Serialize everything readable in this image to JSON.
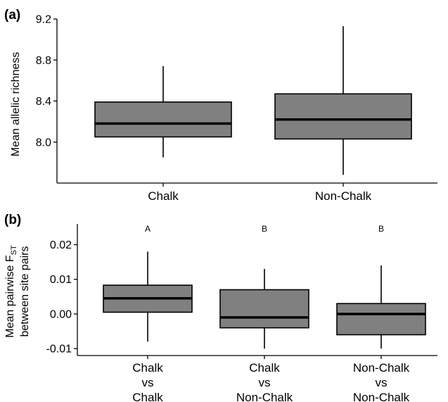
{
  "chart_data": [
    {
      "panel": "(a)",
      "type": "box",
      "ylabel": "Mean allelic richness",
      "ylim": [
        7.6,
        9.2
      ],
      "yticks": [
        "8.0",
        "8.4",
        "8.8",
        "9.2"
      ],
      "box_color": "#808080",
      "categories": [
        {
          "label": [
            "Chalk"
          ],
          "min": 7.85,
          "q1": 8.05,
          "median": 8.18,
          "q3": 8.39,
          "max": 8.74,
          "sig": ""
        },
        {
          "label": [
            "Non-Chalk"
          ],
          "min": 7.68,
          "q1": 8.03,
          "median": 8.22,
          "q3": 8.47,
          "max": 9.13,
          "sig": ""
        }
      ]
    },
    {
      "panel": "(b)",
      "type": "box",
      "ylabel_line1": "Mean pairwise F",
      "ylabel_sub": "ST",
      "ylabel_line2": "between site pairs",
      "ylim": [
        -0.012,
        0.026
      ],
      "yticks": [
        "-0.01",
        "0.00",
        "0.01",
        "0.02"
      ],
      "box_color": "#808080",
      "categories": [
        {
          "label": [
            "Chalk",
            "vs",
            "Chalk"
          ],
          "min": -0.008,
          "q1": 0.0005,
          "median": 0.0045,
          "q3": 0.0083,
          "max": 0.018,
          "sig": "A"
        },
        {
          "label": [
            "Chalk",
            "vs",
            "Non-Chalk"
          ],
          "min": -0.01,
          "q1": -0.004,
          "median": -0.001,
          "q3": 0.007,
          "max": 0.013,
          "sig": "B"
        },
        {
          "label": [
            "Non-Chalk",
            "vs",
            "Non-Chalk"
          ],
          "min": -0.01,
          "q1": -0.006,
          "median": 0.0,
          "q3": 0.003,
          "max": 0.014,
          "sig": "B"
        }
      ]
    }
  ]
}
